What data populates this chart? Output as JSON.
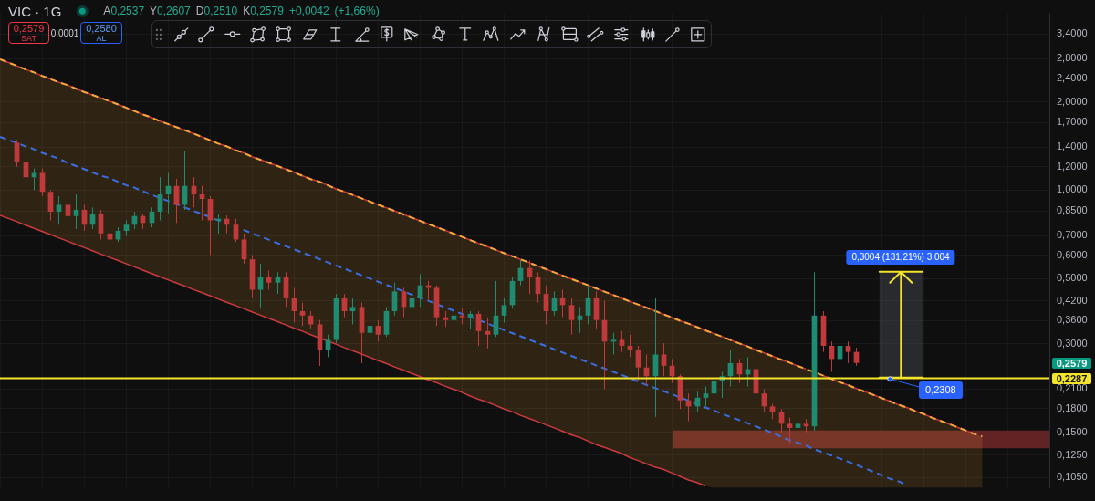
{
  "chart_data": {
    "type": "candlestick",
    "title": "VIC · 1G",
    "subtitle": "A0,2537 Y0,2607 D0,2510 K0,2579 +0,0042 (+1,66%)",
    "categories": [
      null,
      null,
      null,
      null,
      null,
      null,
      null,
      null,
      null,
      null,
      null,
      null,
      null,
      null,
      null,
      null,
      null,
      null,
      null,
      null,
      null,
      null,
      null,
      null,
      null,
      null,
      null,
      null,
      null,
      null,
      null,
      null,
      null,
      null,
      null,
      null,
      null,
      null,
      null,
      null,
      null,
      null,
      null,
      null,
      null,
      null,
      null,
      null,
      null,
      null,
      null,
      null,
      null,
      null,
      null,
      null,
      null,
      null,
      null,
      null,
      null,
      null,
      null,
      null,
      null,
      null,
      null,
      null,
      null,
      null,
      null,
      null,
      null,
      null,
      null,
      null,
      null,
      null,
      null,
      null,
      null,
      null,
      null,
      null,
      null,
      null,
      null,
      null,
      null,
      null,
      null,
      null,
      null,
      null,
      null,
      null,
      null,
      null,
      null,
      null,
      null,
      null,
      null,
      null,
      null,
      null,
      null,
      null,
      null,
      null,
      null,
      null,
      null,
      null,
      null,
      null,
      null,
      null
    ],
    "ohlc": [
      null,
      null,
      [
        1.452,
        1.482,
        1.201,
        1.251
      ],
      [
        1.251,
        1.312,
        1.034,
        1.107
      ],
      [
        1.107,
        1.185,
        1.0,
        1.145
      ],
      [
        1.145,
        1.185,
        0.954,
        0.987
      ],
      [
        0.987,
        1.0,
        0.789,
        0.844
      ],
      [
        0.844,
        0.954,
        0.762,
        0.891
      ],
      [
        0.891,
        1.107,
        0.789,
        0.816
      ],
      [
        0.816,
        0.967,
        0.737,
        0.856
      ],
      [
        0.856,
        0.891,
        0.727,
        0.762
      ],
      [
        0.762,
        0.873,
        0.737,
        0.833
      ],
      [
        0.833,
        0.856,
        0.679,
        0.712
      ],
      [
        0.712,
        0.762,
        0.652,
        0.679
      ],
      [
        0.679,
        0.747,
        0.666,
        0.727
      ],
      [
        0.727,
        0.789,
        0.698,
        0.762
      ],
      [
        0.762,
        0.844,
        0.737,
        0.816
      ],
      [
        0.816,
        0.833,
        0.737,
        0.773
      ],
      [
        0.773,
        0.873,
        0.747,
        0.844
      ],
      [
        0.844,
        1.107,
        0.789,
        0.967
      ],
      [
        0.967,
        1.145,
        0.833,
        1.034
      ],
      [
        1.034,
        1.092,
        0.773,
        0.891
      ],
      [
        0.891,
        1.357,
        0.856,
        1.034
      ],
      [
        1.034,
        1.107,
        0.873,
        0.967
      ],
      [
        0.967,
        1.034,
        0.789,
        0.934
      ],
      [
        0.934,
        0.954,
        0.601,
        0.789
      ],
      [
        0.789,
        0.833,
        0.712,
        0.799
      ],
      [
        0.799,
        0.821,
        0.712,
        0.762
      ],
      [
        0.762,
        0.799,
        0.666,
        0.679
      ],
      [
        0.679,
        0.712,
        0.562,
        0.581
      ],
      [
        0.581,
        0.601,
        0.428,
        0.458
      ],
      [
        0.458,
        0.562,
        0.395,
        0.5075
      ],
      [
        0.5075,
        0.532,
        0.458,
        0.484
      ],
      [
        0.484,
        0.525,
        0.443,
        0.5075
      ],
      [
        0.5075,
        0.525,
        0.4,
        0.428
      ],
      [
        0.428,
        0.465,
        0.354,
        0.387
      ],
      [
        0.387,
        0.414,
        0.345,
        0.374
      ],
      [
        0.374,
        0.387,
        0.338,
        0.349
      ],
      [
        0.349,
        0.361,
        0.252,
        0.285
      ],
      [
        0.285,
        0.322,
        0.27,
        0.309
      ],
      [
        0.309,
        0.443,
        0.301,
        0.428
      ],
      [
        0.428,
        0.443,
        0.369,
        0.387
      ],
      [
        0.387,
        0.428,
        0.349,
        0.4
      ],
      [
        0.4,
        0.414,
        0.2575,
        0.3265
      ],
      [
        0.3265,
        0.354,
        0.309,
        0.345
      ],
      [
        0.345,
        0.361,
        0.305,
        0.322
      ],
      [
        0.322,
        0.4,
        0.316,
        0.387
      ],
      [
        0.387,
        0.484,
        0.374,
        0.452
      ],
      [
        0.452,
        0.465,
        0.369,
        0.4
      ],
      [
        0.4,
        0.443,
        0.379,
        0.428
      ],
      [
        0.428,
        0.518,
        0.4,
        0.474
      ],
      [
        0.474,
        0.4905,
        0.4225,
        0.465
      ],
      [
        0.465,
        0.474,
        0.345,
        0.369
      ],
      [
        0.369,
        0.387,
        0.342,
        0.361
      ],
      [
        0.361,
        0.387,
        0.345,
        0.374
      ],
      [
        0.374,
        0.395,
        0.349,
        0.369
      ],
      [
        0.369,
        0.387,
        0.338,
        0.379
      ],
      [
        0.379,
        0.387,
        0.295,
        0.331
      ],
      [
        0.331,
        0.369,
        0.289,
        0.322
      ],
      [
        0.322,
        0.4905,
        0.316,
        0.374
      ],
      [
        0.374,
        0.428,
        0.354,
        0.406
      ],
      [
        0.406,
        0.5075,
        0.395,
        0.4905
      ],
      [
        0.4905,
        0.577,
        0.474,
        0.543
      ],
      [
        0.543,
        0.577,
        0.443,
        0.5075
      ],
      [
        0.5075,
        0.525,
        0.414,
        0.443
      ],
      [
        0.443,
        0.474,
        0.349,
        0.387
      ],
      [
        0.387,
        0.452,
        0.374,
        0.428
      ],
      [
        0.428,
        0.458,
        0.369,
        0.406
      ],
      [
        0.406,
        0.428,
        0.322,
        0.361
      ],
      [
        0.361,
        0.4,
        0.3265,
        0.374
      ],
      [
        0.374,
        0.474,
        0.349,
        0.428
      ],
      [
        0.428,
        0.452,
        0.338,
        0.361
      ],
      [
        0.361,
        0.42,
        0.21,
        0.305
      ],
      [
        0.305,
        0.3265,
        0.2756,
        0.309
      ],
      [
        0.309,
        0.331,
        0.281,
        0.295
      ],
      [
        0.295,
        0.322,
        0.27,
        0.285
      ],
      [
        0.285,
        0.295,
        0.2248,
        0.249
      ],
      [
        0.249,
        0.2756,
        0.217,
        0.2325
      ],
      [
        0.2325,
        0.428,
        0.169,
        0.2756
      ],
      [
        0.2756,
        0.301,
        0.2325,
        0.2523
      ],
      [
        0.2523,
        0.266,
        0.2203,
        0.2325
      ],
      [
        0.2325,
        0.2357,
        0.1797,
        0.1923
      ],
      [
        0.1923,
        0.203,
        0.1634,
        0.1834
      ],
      [
        0.1834,
        0.2058,
        0.1749,
        0.1963
      ],
      [
        0.1963,
        0.2144,
        0.1834,
        0.203
      ],
      [
        0.203,
        0.2406,
        0.1923,
        0.2248
      ],
      [
        0.2248,
        0.2406,
        0.1963,
        0.2325
      ],
      [
        0.2325,
        0.285,
        0.2144,
        0.2575
      ],
      [
        0.2575,
        0.266,
        0.2203,
        0.2357
      ],
      [
        0.2357,
        0.27,
        0.2144,
        0.2456
      ],
      [
        0.2456,
        0.2523,
        0.1923,
        0.203
      ],
      [
        0.203,
        0.21,
        0.1749,
        0.1834
      ],
      [
        0.1834,
        0.1872,
        0.166,
        0.1749
      ],
      [
        0.1749,
        0.1797,
        0.1496,
        0.1601
      ],
      [
        0.1601,
        0.1679,
        0.137,
        0.155
      ],
      [
        0.155,
        0.166,
        0.1496,
        0.1601
      ],
      [
        0.1601,
        0.166,
        0.1496,
        0.1569
      ],
      [
        0.1569,
        0.525,
        0.1517,
        0.374
      ],
      [
        0.374,
        0.387,
        0.2812,
        0.2949
      ],
      [
        0.2949,
        0.305,
        0.2406,
        0.266
      ],
      [
        0.266,
        0.309,
        0.2357,
        0.2949
      ],
      [
        0.2949,
        0.305,
        0.2575,
        0.2812
      ],
      [
        0.2812,
        0.2909,
        0.2523,
        0.2579
      ],
      null,
      null,
      null,
      null,
      null,
      null,
      null,
      null,
      null,
      null,
      null,
      null,
      null,
      null,
      null
    ],
    "colors": [
      null,
      null,
      "#c0393b",
      "#c0393b",
      "#1f8c72",
      "#c0393b",
      "#c0393b",
      "#1f8c72",
      "#c0393b",
      "#1f8c72",
      "#c0393b",
      "#1f8c72",
      "#c0393b",
      "#c0393b",
      "#1f8c72",
      "#1f8c72",
      "#1f8c72",
      "#c0393b",
      "#1f8c72",
      "#1f8c72",
      "#1f8c72",
      "#c0393b",
      "#1f8c72",
      "#c0393b",
      "#c0393b",
      "#c0393b",
      "#1f8c72",
      "#c0393b",
      "#c0393b",
      "#c0393b",
      "#c0393b",
      "#1f8c72",
      "#c0393b",
      "#1f8c72",
      "#c0393b",
      "#c0393b",
      "#c0393b",
      "#c0393b",
      "#c0393b",
      "#1f8c72",
      "#1f8c72",
      "#c0393b",
      "#1f8c72",
      "#c0393b",
      "#1f8c72",
      "#c0393b",
      "#1f8c72",
      "#1f8c72",
      "#c0393b",
      "#1f8c72",
      "#1f8c72",
      "#c0393b",
      "#c0393b",
      "#c0393b",
      "#1f8c72",
      "#c0393b",
      "#1f8c72",
      "#c0393b",
      "#c0393b",
      "#1f8c72",
      "#1f8c72",
      "#1f8c72",
      "#1f8c72",
      "#c0393b",
      "#c0393b",
      "#c0393b",
      "#1f8c72",
      "#c0393b",
      "#c0393b",
      "#1f8c72",
      "#1f8c72",
      "#c0393b",
      "#c0393b",
      "#1f8c72",
      "#c0393b",
      "#c0393b",
      "#c0393b",
      "#c0393b",
      "#1f8c72",
      "#c0393b",
      "#c0393b",
      "#c0393b",
      "#c0393b",
      "#1f8c72",
      "#1f8c72",
      "#1f8c72",
      "#1f8c72",
      "#1f8c72",
      "#c0393b",
      "#1f8c72",
      "#c0393b",
      "#c0393b",
      "#c0393b",
      "#c0393b",
      "#c0393b",
      "#1f8c72",
      "#c0393b",
      "#1f8c72",
      "#c0393b",
      "#c0393b",
      "#1f8c72",
      "#c0393b",
      "#c0393b",
      null,
      null,
      null,
      null,
      null,
      null,
      null,
      null,
      null,
      null,
      null,
      null,
      null,
      null,
      null
    ],
    "series": [
      {
        "type": "line",
        "color": "#f5a83a",
        "line_style": "dashed",
        "values": [
          2.79,
          2.72,
          2.65,
          2.58,
          2.52,
          2.45,
          2.39,
          2.33,
          2.28,
          2.22,
          2.16,
          2.11,
          2.06,
          2.01,
          1.96,
          1.91,
          1.86,
          1.81,
          1.77,
          1.72,
          1.68,
          1.64,
          1.6,
          1.56,
          1.52,
          1.48,
          1.44,
          1.41,
          1.37,
          1.34,
          1.3,
          1.27,
          1.24,
          1.21,
          1.18,
          1.15,
          1.12,
          1.09,
          1.07,
          1.04,
          1.01,
          0.988,
          0.963,
          0.939,
          0.916,
          0.893,
          0.871,
          0.849,
          0.828,
          0.807,
          0.787,
          0.767,
          0.748,
          0.73,
          0.711,
          0.694,
          0.676,
          0.659,
          0.643,
          0.627,
          0.611,
          0.596,
          0.581,
          0.567,
          0.552,
          0.539,
          0.525,
          0.512,
          0.499,
          0.487,
          0.475,
          0.463,
          0.451,
          0.44,
          0.429,
          0.418,
          0.408,
          0.398,
          0.388,
          0.378,
          0.369,
          0.359,
          0.351,
          0.342,
          0.333,
          0.325,
          0.317,
          0.309,
          0.301,
          0.294,
          0.286,
          0.279,
          0.272,
          0.265,
          0.259,
          0.252,
          0.246,
          0.24,
          0.234,
          0.228,
          0.222,
          0.217,
          0.211,
          0.206,
          0.201,
          0.196,
          0.191,
          0.186,
          0.182,
          0.177,
          0.173,
          0.168,
          0.164,
          0.16,
          0.156,
          0.152,
          0.148,
          0.145
        ],
        "upper": [
          2.79,
          2.72,
          2.65,
          2.58,
          2.52,
          2.45,
          2.39,
          2.33,
          2.28,
          2.22,
          2.16,
          2.11,
          2.06,
          2.01,
          1.96,
          1.91,
          1.86,
          1.81,
          1.77,
          1.72,
          1.68,
          1.64,
          1.6,
          1.56,
          1.52,
          1.48,
          1.44,
          1.41,
          1.37,
          1.34,
          1.3,
          1.27,
          1.24,
          1.21,
          1.18,
          1.15,
          1.12,
          1.09,
          1.07,
          1.04,
          1.01,
          0.988,
          0.963,
          0.939,
          0.916,
          0.893,
          0.871,
          0.849,
          0.828,
          0.807,
          0.787,
          0.767,
          0.748,
          0.73,
          0.711,
          0.694,
          0.676,
          0.659,
          0.643,
          0.627,
          0.611,
          0.596,
          0.581,
          0.567,
          0.552,
          0.539,
          0.525,
          0.512,
          0.499,
          0.487,
          0.475,
          0.463,
          0.451,
          0.44,
          0.429,
          0.418,
          0.408,
          0.398,
          0.388,
          0.378,
          0.369,
          0.359,
          0.351,
          0.342,
          0.333,
          0.325,
          0.317,
          0.309,
          0.301,
          0.294,
          0.286,
          0.279,
          0.272,
          0.265,
          0.259,
          0.252,
          0.246,
          0.24,
          0.234,
          0.228,
          0.222,
          0.217,
          0.211,
          0.206,
          0.201,
          0.196,
          0.191,
          0.186,
          0.182,
          0.177,
          0.173,
          0.168,
          0.164,
          0.16,
          0.156,
          0.152,
          0.148,
          0.145
        ],
        "lower": [
          0.821,
          0.801,
          0.781,
          0.761,
          0.742,
          0.724,
          0.706,
          0.688,
          0.671,
          0.654,
          0.638,
          0.622,
          0.606,
          0.591,
          0.577,
          0.562,
          0.548,
          0.534,
          0.521,
          0.508,
          0.495,
          0.483,
          0.471,
          0.459,
          0.448,
          0.437,
          0.426,
          0.415,
          0.405,
          0.395,
          0.385,
          0.375,
          0.366,
          0.357,
          0.348,
          0.339,
          0.331,
          0.322,
          0.314,
          0.306,
          0.299,
          0.291,
          0.284,
          0.277,
          0.27,
          0.263,
          0.257,
          0.25,
          0.244,
          0.238,
          0.232,
          0.226,
          0.221,
          0.215,
          0.21,
          0.205,
          0.199,
          0.194,
          0.19,
          0.185,
          0.18,
          0.176,
          0.171,
          0.167,
          0.163,
          0.159,
          0.155,
          0.151,
          0.147,
          0.144,
          0.14,
          0.136,
          0.133,
          0.13,
          0.127,
          0.123,
          0.12,
          0.117,
          0.114,
          0.112,
          0.109,
          0.106,
          0.103,
          0.101,
          0.0983,
          0.097,
          0.097,
          0.097,
          0.097,
          0.097,
          0.097,
          0.097,
          0.097,
          0.097,
          0.097,
          0.097,
          0.097,
          0.097,
          0.097,
          0.097,
          0.097,
          0.097,
          0.097,
          0.097,
          0.097,
          0.097,
          0.097,
          0.097,
          0.097,
          0.097,
          0.097,
          0.097,
          0.097,
          0.097,
          0.097,
          0.097,
          0.097,
          0.097
        ]
      },
      {
        "type": "line",
        "color": "#cc3a3f",
        "values": [
          2.79,
          2.72,
          2.65,
          2.58,
          2.52,
          2.45,
          2.39,
          2.33,
          2.28,
          2.22,
          2.16,
          2.11,
          2.06,
          2.01,
          1.96,
          1.91,
          1.86,
          1.81,
          1.77,
          1.72,
          1.68,
          1.64,
          1.6,
          1.56,
          1.52,
          1.48,
          1.44,
          1.41,
          1.37,
          1.34,
          1.3,
          1.27,
          1.24,
          1.21,
          1.18,
          1.15,
          1.12,
          1.09,
          1.07,
          1.04,
          1.01,
          0.988,
          0.963,
          0.939,
          0.916,
          0.893,
          0.871,
          0.849,
          0.828,
          0.807,
          0.787,
          0.767,
          0.748,
          0.73,
          0.711,
          0.694,
          0.676,
          0.659,
          0.643,
          0.627,
          0.611,
          0.596,
          0.581,
          0.567,
          0.552,
          0.539,
          0.525,
          0.512,
          0.499,
          0.487,
          0.475,
          0.463,
          0.451,
          0.44,
          0.429,
          0.418,
          0.408,
          0.398,
          0.388,
          0.378,
          0.369,
          0.359,
          0.351,
          0.342,
          0.333,
          0.325,
          0.317,
          0.309,
          0.301,
          0.294,
          0.286,
          0.279,
          0.272,
          0.265,
          0.259,
          0.252,
          0.246,
          null,
          0.234,
          0.228,
          0.222,
          0.217,
          0.211,
          0.206,
          0.201,
          0.196,
          0.191,
          0.186,
          0.182,
          0.177,
          0.173,
          0.168,
          0.164,
          0.16,
          0.156,
          0.152,
          0.148,
          null
        ]
      },
      {
        "type": "line",
        "color": "#cc3a3f",
        "values": [
          0.821,
          0.801,
          0.781,
          0.761,
          0.742,
          0.724,
          0.706,
          0.688,
          0.671,
          0.654,
          0.638,
          0.622,
          0.606,
          0.591,
          0.577,
          0.562,
          0.548,
          0.534,
          0.521,
          0.508,
          0.495,
          0.483,
          0.471,
          0.459,
          0.448,
          0.437,
          0.426,
          0.415,
          0.405,
          0.395,
          0.385,
          0.375,
          0.366,
          0.357,
          0.348,
          0.339,
          0.331,
          0.322,
          0.314,
          0.306,
          0.299,
          0.291,
          0.284,
          0.277,
          0.27,
          0.263,
          0.257,
          0.25,
          0.244,
          0.238,
          0.232,
          0.226,
          0.221,
          0.215,
          0.21,
          0.205,
          0.199,
          0.194,
          0.19,
          0.185,
          0.18,
          0.176,
          0.171,
          0.167,
          0.163,
          0.159,
          0.155,
          0.151,
          0.147,
          0.144,
          0.14,
          0.136,
          0.133,
          0.13,
          0.127,
          0.123,
          0.12,
          0.117,
          0.114,
          0.112,
          0.109,
          0.106,
          0.103,
          0.101,
          0.0983,
          null,
          null,
          null,
          null,
          null,
          null,
          null,
          null,
          null,
          null,
          null,
          null,
          null,
          null,
          null,
          null,
          null,
          null,
          null,
          null,
          null,
          null,
          null,
          null,
          null,
          null,
          null,
          null,
          null,
          null,
          null,
          null,
          null
        ]
      },
      {
        "type": "line",
        "color": "#3a6ee0",
        "line_style": "dashed",
        "values": [
          1.52,
          1.48,
          1.45,
          1.41,
          1.38,
          1.34,
          1.31,
          1.28,
          1.24,
          1.21,
          1.18,
          1.15,
          1.12,
          1.1,
          1.07,
          1.04,
          1.02,
          0.991,
          0.966,
          0.942,
          0.919,
          0.896,
          0.873,
          0.851,
          0.83,
          0.81,
          0.789,
          0.77,
          null,
          0.732,
          0.713,
          0.696,
          0.678,
          0.661,
          0.645,
          0.629,
          0.613,
          0.598,
          0.583,
          0.568,
          0.554,
          0.54,
          0.527,
          0.514,
          0.501,
          0.488,
          0.476,
          0.464,
          0.453,
          0.441,
          0.43,
          0.42,
          0.409,
          0.399,
          0.389,
          0.379,
          0.37,
          0.361,
          0.352,
          0.343,
          0.334,
          0.326,
          0.318,
          0.31,
          0.302,
          0.295,
          0.287,
          0.28,
          0.273,
          0.266,
          0.26,
          0.253,
          0.247,
          0.241,
          0.235,
          0.229,
          0.223,
          0.217,
          0.212,
          0.207,
          0.202,
          0.197,
          0.192,
          0.187,
          0.182,
          0.178,
          0.173,
          0.169,
          0.165,
          0.161,
          0.157,
          0.153,
          0.149,
          0.145,
          0.141,
          0.138,
          0.135,
          0.131,
          0.128,
          0.125,
          0.122,
          0.119,
          0.116,
          0.113,
          0.11,
          0.107,
          0.104,
          0.102,
          0.0993,
          null,
          null,
          null,
          null,
          null,
          null,
          null,
          null,
          null
        ]
      }
    ],
    "ylim": [
      0.097,
      4.0
    ],
    "yticks": [
      {
        "value": 0.105,
        "label": "0,1050"
      },
      {
        "value": 0.125,
        "label": "0,1250"
      },
      {
        "value": 0.15,
        "label": "0,1500"
      },
      {
        "value": 0.18,
        "label": "0,1800"
      },
      {
        "value": 0.21,
        "label": "0,2100"
      },
      {
        "value": 0.3,
        "label": "0,3000"
      },
      {
        "value": 0.36,
        "label": "0,3600"
      },
      {
        "value": 0.42,
        "label": "0,4200"
      },
      {
        "value": 0.5,
        "label": "0,5000"
      },
      {
        "value": 0.6,
        "label": "0,6000"
      },
      {
        "value": 0.7,
        "label": "0,7000"
      },
      {
        "value": 0.85,
        "label": "0,8500"
      },
      {
        "value": 1.0,
        "label": "1,0000"
      },
      {
        "value": 1.2,
        "label": "1,2000"
      },
      {
        "value": 1.4,
        "label": "1,4000"
      },
      {
        "value": 1.7,
        "label": "1,7000"
      },
      {
        "value": 2.0,
        "label": "2,0000"
      },
      {
        "value": 2.4,
        "label": "2,4000"
      },
      {
        "value": 2.8,
        "label": "2,8000"
      },
      {
        "value": 3.4,
        "label": "3,4000"
      }
    ],
    "log": true,
    "grid": true,
    "marker": "none",
    "ref_lines": [
      {
        "axis": "y",
        "value": 0.2287,
        "label": "0,2287",
        "color": "#f5e52a"
      }
    ],
    "bands": [
      {
        "axis": "y",
        "from": 0.1322,
        "to": 0.152,
        "color": "#622325"
      }
    ],
    "annotations": [
      "0,2579",
      "SAT",
      "0,0001",
      "0,2580",
      "AL",
      "0,2579",
      "0,3004 (131,21%) 3.004",
      "0,2308"
    ]
  }
}
